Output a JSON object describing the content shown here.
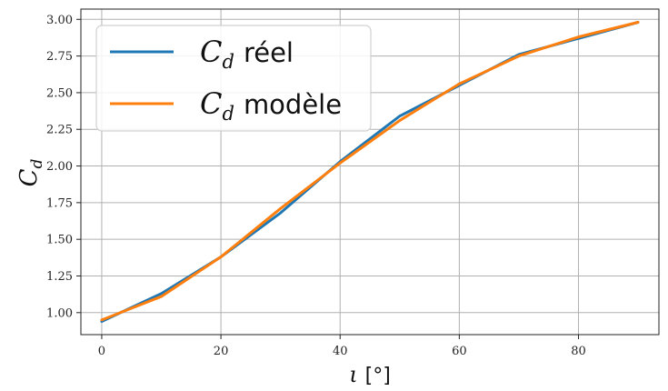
{
  "chart_data": {
    "type": "line",
    "xlabel": {
      "symbol": "ι",
      "unit": "[°]"
    },
    "ylabel": {
      "symbol": "C",
      "subscript": "d"
    },
    "xlim": [
      -3.5,
      93.5
    ],
    "ylim": [
      0.85,
      3.07
    ],
    "xticks": [
      0,
      20,
      40,
      60,
      80
    ],
    "xtick_labels": [
      "0",
      "20",
      "40",
      "60",
      "80"
    ],
    "yticks": [
      1.0,
      1.25,
      1.5,
      1.75,
      2.0,
      2.25,
      2.5,
      2.75,
      3.0
    ],
    "ytick_labels": [
      "1.00",
      "1.25",
      "1.50",
      "1.75",
      "2.00",
      "2.25",
      "2.50",
      "2.75",
      "3.00"
    ],
    "grid": true,
    "legend_position": "top-left",
    "x": [
      0,
      10,
      20,
      30,
      40,
      50,
      60,
      70,
      80,
      90
    ],
    "series": [
      {
        "name": "C_d réel",
        "legend": {
          "symbol": "C",
          "subscript": "d",
          "text": "réel"
        },
        "color": "#1f77b4",
        "values": [
          0.94,
          1.13,
          1.38,
          1.68,
          2.03,
          2.34,
          2.55,
          2.76,
          2.87,
          2.98
        ]
      },
      {
        "name": "C_d modèle",
        "legend": {
          "symbol": "C",
          "subscript": "d",
          "text": "modèle"
        },
        "color": "#ff7f0e",
        "values": [
          0.95,
          1.11,
          1.38,
          1.71,
          2.02,
          2.31,
          2.56,
          2.75,
          2.88,
          2.98
        ]
      }
    ]
  }
}
